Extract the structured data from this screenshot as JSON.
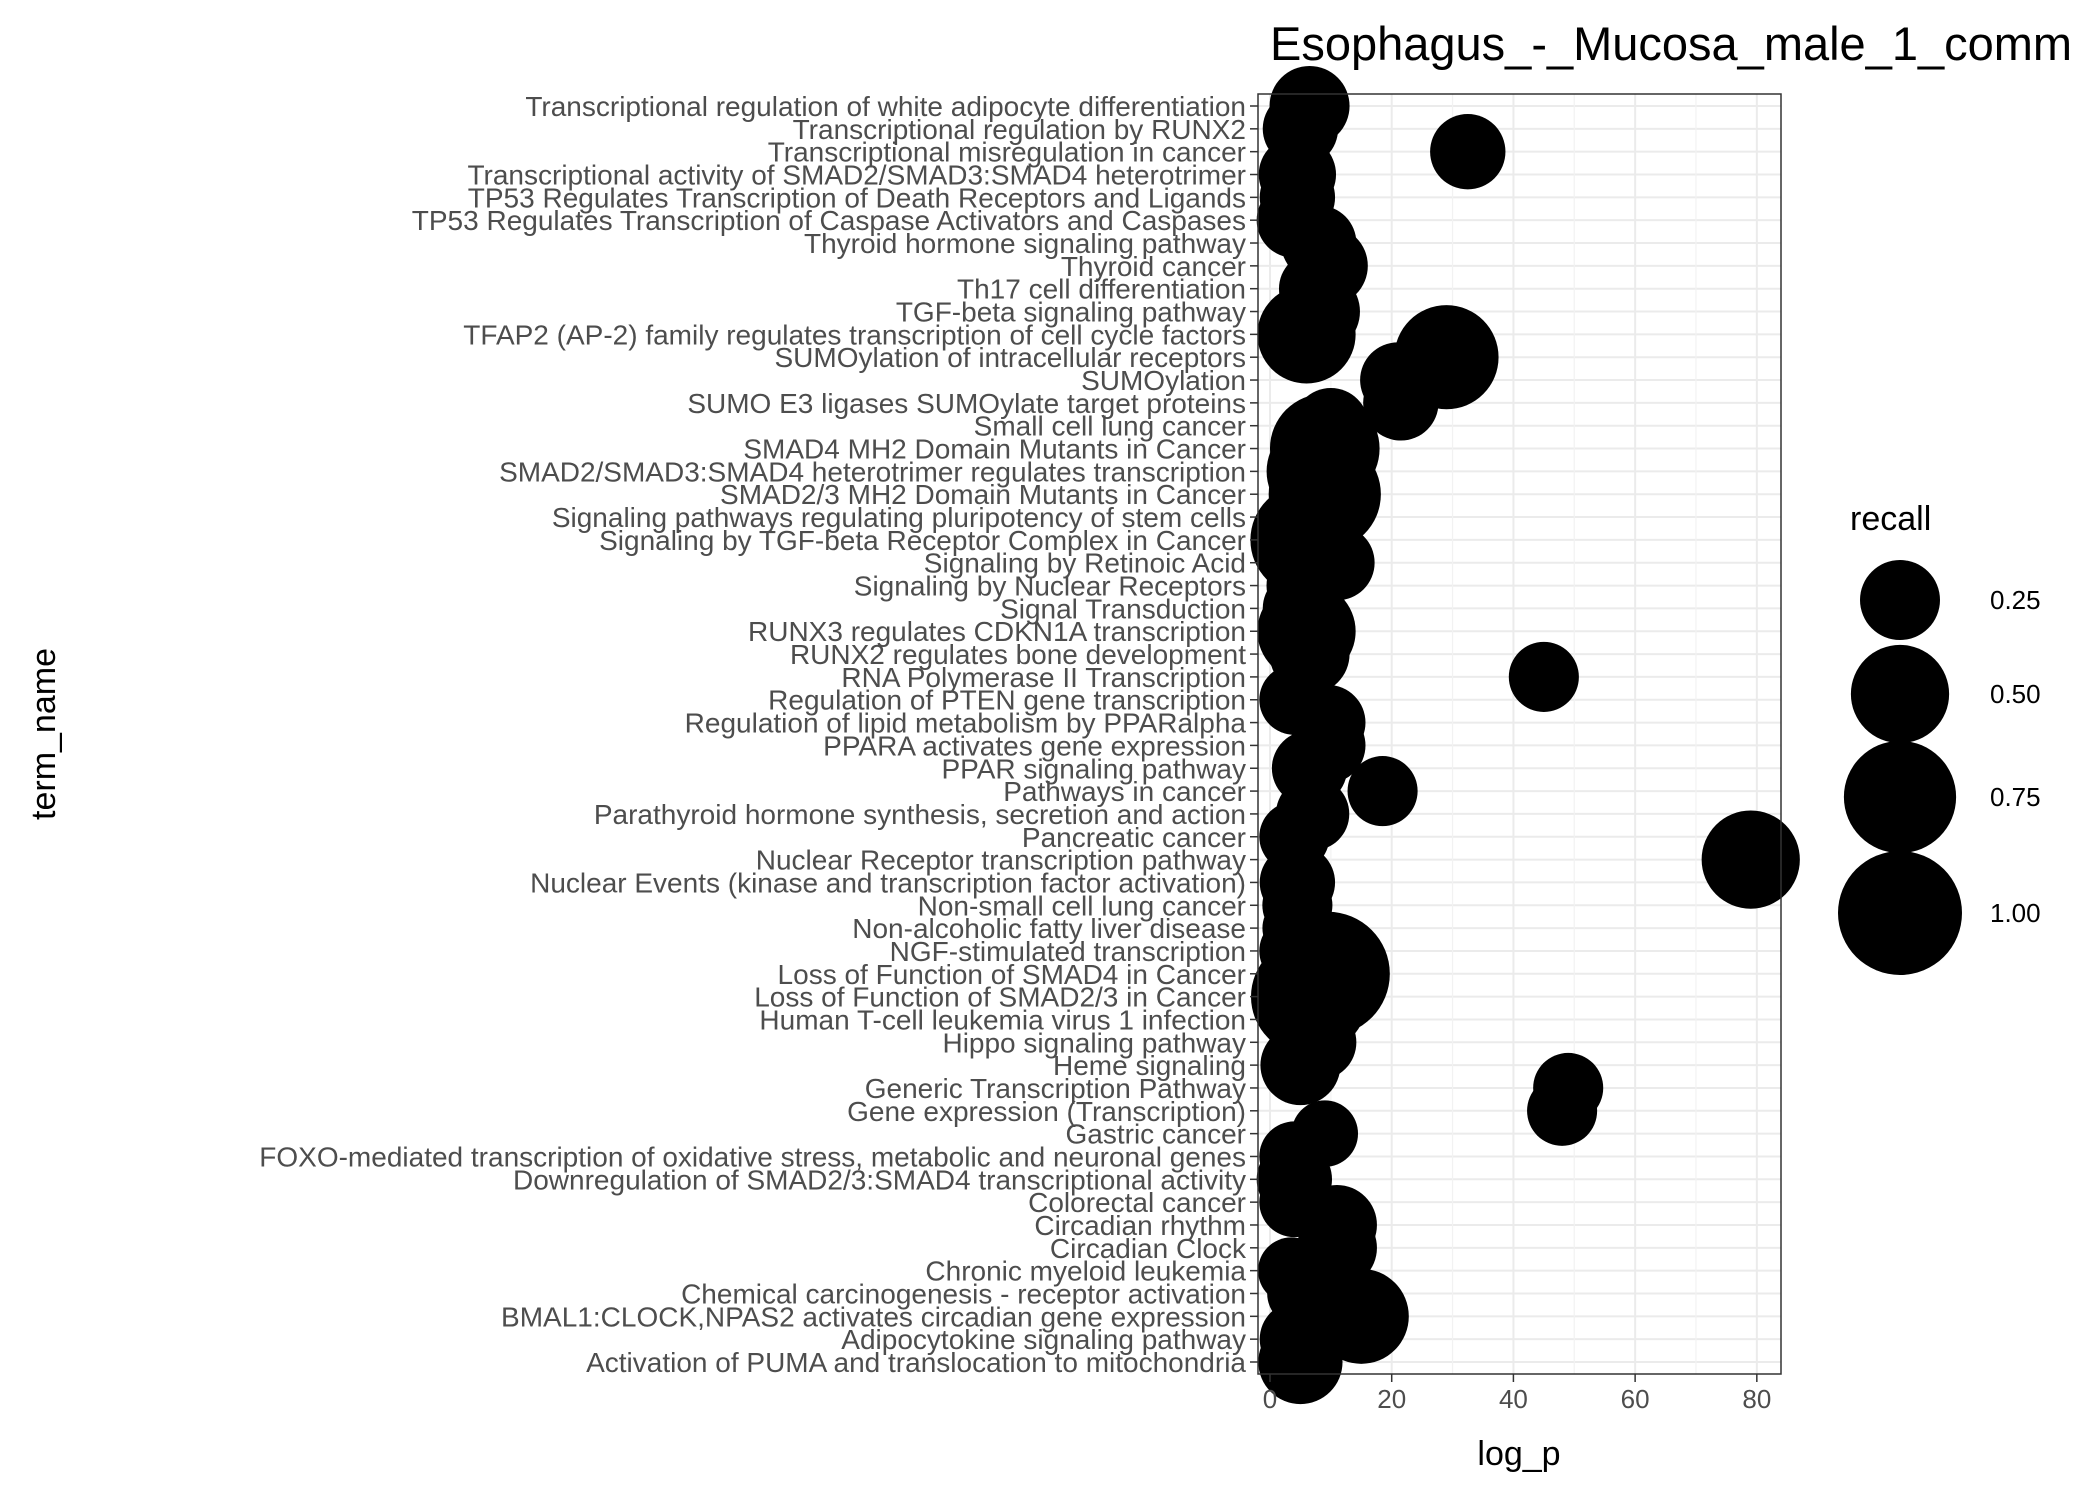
{
  "chart_data": {
    "type": "scatter",
    "title": "Esophagus_-_Mucosa_male_1_comm",
    "xlabel": "log_p",
    "ylabel": "term_name",
    "xlim": [
      0,
      82
    ],
    "x_ticks": [
      0,
      20,
      40,
      60,
      80
    ],
    "grid": true,
    "legend": {
      "title": "recall",
      "position": "right",
      "entries": [
        {
          "label": "0.25",
          "value": 0.25
        },
        {
          "label": "0.50",
          "value": 0.5
        },
        {
          "label": "0.75",
          "value": 0.75
        },
        {
          "label": "1.00",
          "value": 1.0
        }
      ]
    },
    "colors": {
      "point": "#000000",
      "panel_bg": "#ffffff",
      "grid_major": "#ebebeb",
      "grid_minor": "#f2f2f2",
      "border": "#333333"
    },
    "points": [
      {
        "term": "Transcriptional regulation of white adipocyte differentiation",
        "log_p": 6.5,
        "recall": 0.25
      },
      {
        "term": "Transcriptional regulation by RUNX2",
        "log_p": 5,
        "recall": 0.2
      },
      {
        "term": "Transcriptional misregulation in cancer",
        "log_p": 32.5,
        "recall": 0.2
      },
      {
        "term": "Transcriptional activity of SMAD2/SMAD3:SMAD4 heterotrimer",
        "log_p": 4.5,
        "recall": 0.22
      },
      {
        "term": "TP53 Regulates Transcription of Death Receptors and Ligands",
        "log_p": 4.5,
        "recall": 0.2
      },
      {
        "term": "TP53 Regulates Transcription of Caspase Activators and Caspases",
        "log_p": 4,
        "recall": 0.2
      },
      {
        "term": "Thyroid hormone signaling pathway",
        "log_p": 8,
        "recall": 0.2
      },
      {
        "term": "Thyroid cancer",
        "log_p": 9.5,
        "recall": 0.25
      },
      {
        "term": "Th17 cell differentiation",
        "log_p": 7.5,
        "recall": 0.18
      },
      {
        "term": "TGF-beta signaling pathway",
        "log_p": 8,
        "recall": 0.28
      },
      {
        "term": "TFAP2 (AP-2) family regulates transcription of cell cycle factors",
        "log_p": 6,
        "recall": 0.5
      },
      {
        "term": "SUMOylation of intracellular receptors",
        "log_p": 29,
        "recall": 0.6
      },
      {
        "term": "SUMOylation",
        "log_p": 21,
        "recall": 0.2
      },
      {
        "term": "SUMO E3 ligases SUMOylate target proteins",
        "log_p": 21.5,
        "recall": 0.2
      },
      {
        "term": "Small cell lung cancer",
        "log_p": 10,
        "recall": 0.2
      },
      {
        "term": "SMAD4 MH2 Domain Mutants in Cancer",
        "log_p": 9,
        "recall": 0.7
      },
      {
        "term": "SMAD2/SMAD3:SMAD4 heterotrimer regulates transcription",
        "log_p": 8,
        "recall": 0.6
      },
      {
        "term": "SMAD2/3 MH2 Domain Mutants in Cancer",
        "log_p": 9,
        "recall": 0.75
      },
      {
        "term": "Signaling pathways regulating pluripotency of stem cells",
        "log_p": 6,
        "recall": 0.25
      },
      {
        "term": "Signaling by TGF-beta Receptor Complex in Cancer",
        "log_p": 6,
        "recall": 0.75
      },
      {
        "term": "Signaling by Retinoic Acid",
        "log_p": 11,
        "recall": 0.2
      },
      {
        "term": "Signaling by Nuclear Receptors",
        "log_p": 6,
        "recall": 0.25
      },
      {
        "term": "Signal Transduction",
        "log_p": 5,
        "recall": 0.2
      },
      {
        "term": "RUNX3 regulates CDKN1A transcription",
        "log_p": 6,
        "recall": 0.5
      },
      {
        "term": "RUNX2 regulates bone development",
        "log_p": 6.5,
        "recall": 0.25
      },
      {
        "term": "RNA Polymerase II Transcription",
        "log_p": 45,
        "recall": 0.15
      },
      {
        "term": "Regulation of PTEN gene transcription",
        "log_p": 4,
        "recall": 0.15
      },
      {
        "term": "Regulation of lipid metabolism by PPARalpha",
        "log_p": 9.5,
        "recall": 0.2
      },
      {
        "term": "PPARA activates gene expression",
        "log_p": 9.5,
        "recall": 0.2
      },
      {
        "term": "PPAR signaling pathway",
        "log_p": 6.5,
        "recall": 0.2
      },
      {
        "term": "Pathways in cancer",
        "log_p": 18.5,
        "recall": 0.15
      },
      {
        "term": "Parathyroid hormone synthesis, secretion and action",
        "log_p": 7,
        "recall": 0.18
      },
      {
        "term": "Pancreatic cancer",
        "log_p": 4,
        "recall": 0.15
      },
      {
        "term": "Nuclear Receptor transcription pathway",
        "log_p": 79,
        "recall": 0.5
      },
      {
        "term": "Nuclear Events (kinase and transcription factor activation)",
        "log_p": 4.5,
        "recall": 0.2
      },
      {
        "term": "Non-small cell lung cancer",
        "log_p": 4.5,
        "recall": 0.15
      },
      {
        "term": "Non-alcoholic fatty liver disease",
        "log_p": 4,
        "recall": 0.1
      },
      {
        "term": "NGF-stimulated transcription",
        "log_p": 4,
        "recall": 0.15
      },
      {
        "term": "Loss of Function of SMAD4 in Cancer",
        "log_p": 9.5,
        "recall": 1.0
      },
      {
        "term": "Loss of Function of SMAD2/3 in Cancer",
        "log_p": 6.5,
        "recall": 0.85
      },
      {
        "term": "Human T-cell leukemia virus 1 infection",
        "log_p": 4.5,
        "recall": 0.12
      },
      {
        "term": "Hippo signaling pathway",
        "log_p": 8,
        "recall": 0.2
      },
      {
        "term": "Heme signaling",
        "log_p": 5,
        "recall": 0.25
      },
      {
        "term": "Generic Transcription Pathway",
        "log_p": 49,
        "recall": 0.15
      },
      {
        "term": "Gene expression (Transcription)",
        "log_p": 48,
        "recall": 0.15
      },
      {
        "term": "Gastric cancer",
        "log_p": 9,
        "recall": 0.12
      },
      {
        "term": "FOXO-mediated transcription of oxidative stress, metabolic and neuronal genes",
        "log_p": 4,
        "recall": 0.15
      },
      {
        "term": "Downregulation of SMAD2/3:SMAD4 transcriptional activity",
        "log_p": 4,
        "recall": 0.2
      },
      {
        "term": "Colorectal cancer",
        "log_p": 4,
        "recall": 0.15
      },
      {
        "term": "Circadian rhythm",
        "log_p": 11,
        "recall": 0.25
      },
      {
        "term": "Circadian Clock",
        "log_p": 11,
        "recall": 0.25
      },
      {
        "term": "Chronic myeloid leukemia",
        "log_p": 3.5,
        "recall": 0.12
      },
      {
        "term": "Chemical carcinogenesis - receptor activation",
        "log_p": 5,
        "recall": 0.12
      },
      {
        "term": "BMAL1:CLOCK,NPAS2 activates circadian gene expression",
        "log_p": 15,
        "recall": 0.45
      },
      {
        "term": "Adipocytokine signaling pathway",
        "log_p": 4.5,
        "recall": 0.2
      },
      {
        "term": "Activation of PUMA and translocation to mitochondria",
        "log_p": 5,
        "recall": 0.3
      }
    ]
  }
}
